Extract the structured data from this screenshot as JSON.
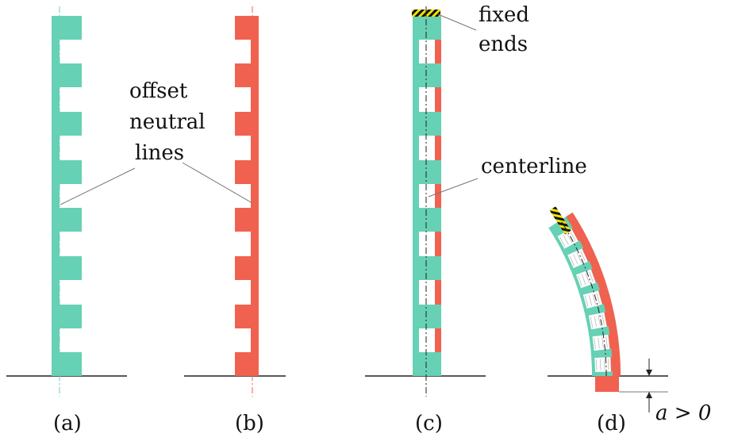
{
  "labels": {
    "offset_line1": "offset",
    "offset_line2": "neutral",
    "offset_line3": "lines",
    "fixed_line1": "fixed",
    "fixed_line2": "ends",
    "centerline": "centerline",
    "a_gt_0": "a > 0"
  },
  "captions": {
    "a": "(a)",
    "b": "(b)",
    "c": "(c)",
    "d": "(d)"
  },
  "colors": {
    "teal": "#66D1B4",
    "red": "#F0624F",
    "hatch_yellow": "#F2E200",
    "line": "#222222"
  }
}
